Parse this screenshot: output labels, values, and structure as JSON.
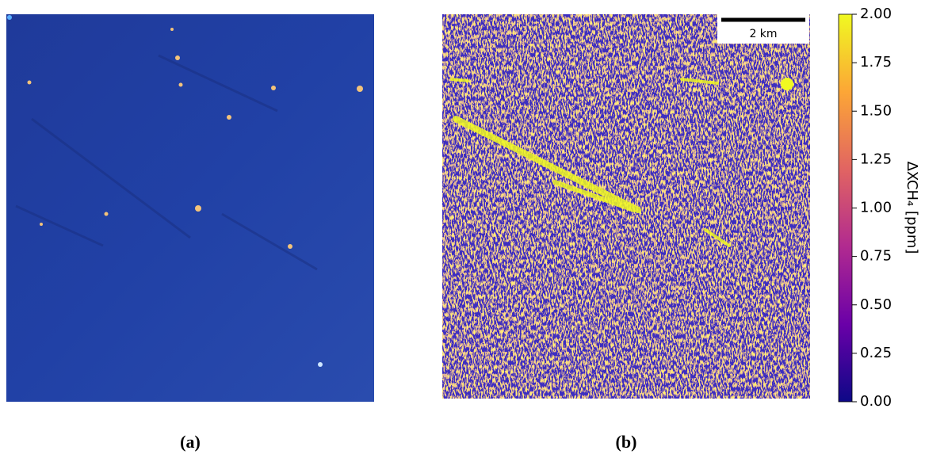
{
  "panels": [
    {
      "label": "(a)"
    },
    {
      "label": "(b)",
      "scale_bar": "2 km",
      "colorbar": {
        "label": "ΔXCH₄ [ppm]",
        "lim": [
          0,
          2
        ],
        "ticks": [
          {
            "value": 0,
            "label": "0.00"
          },
          {
            "value": 0.25,
            "label": "0.25"
          },
          {
            "value": 0.5,
            "label": "0.50"
          },
          {
            "value": 0.75,
            "label": "0.75"
          },
          {
            "value": 1,
            "label": "1.00"
          },
          {
            "value": 1.25,
            "label": "1.25"
          },
          {
            "value": 1.5,
            "label": "1.50"
          },
          {
            "value": 1.75,
            "label": "1.75"
          },
          {
            "value": 2,
            "label": "2.00"
          }
        ]
      }
    }
  ]
}
